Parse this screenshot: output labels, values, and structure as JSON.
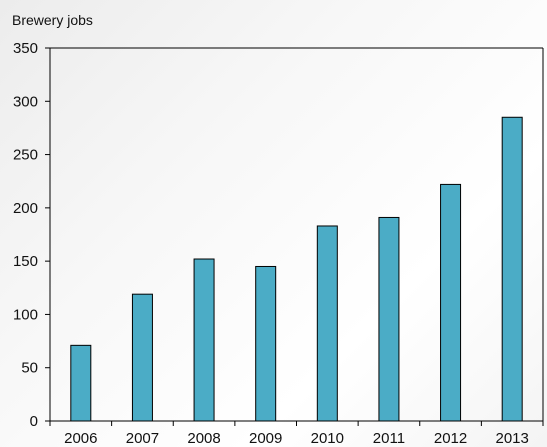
{
  "chart_data": {
    "type": "bar",
    "ylabel": "Brewery jobs",
    "categories": [
      "2006",
      "2007",
      "2008",
      "2009",
      "2010",
      "2011",
      "2012",
      "2013"
    ],
    "values": [
      71,
      119,
      152,
      145,
      183,
      191,
      222,
      285
    ],
    "ylim": [
      0,
      350
    ],
    "yticks": [
      0,
      50,
      100,
      150,
      200,
      250,
      300,
      350
    ],
    "grid": false,
    "legend": "none",
    "colors": {
      "bar": "#4bacc6",
      "bar_stroke": "#000000",
      "axis": "#000000"
    }
  }
}
